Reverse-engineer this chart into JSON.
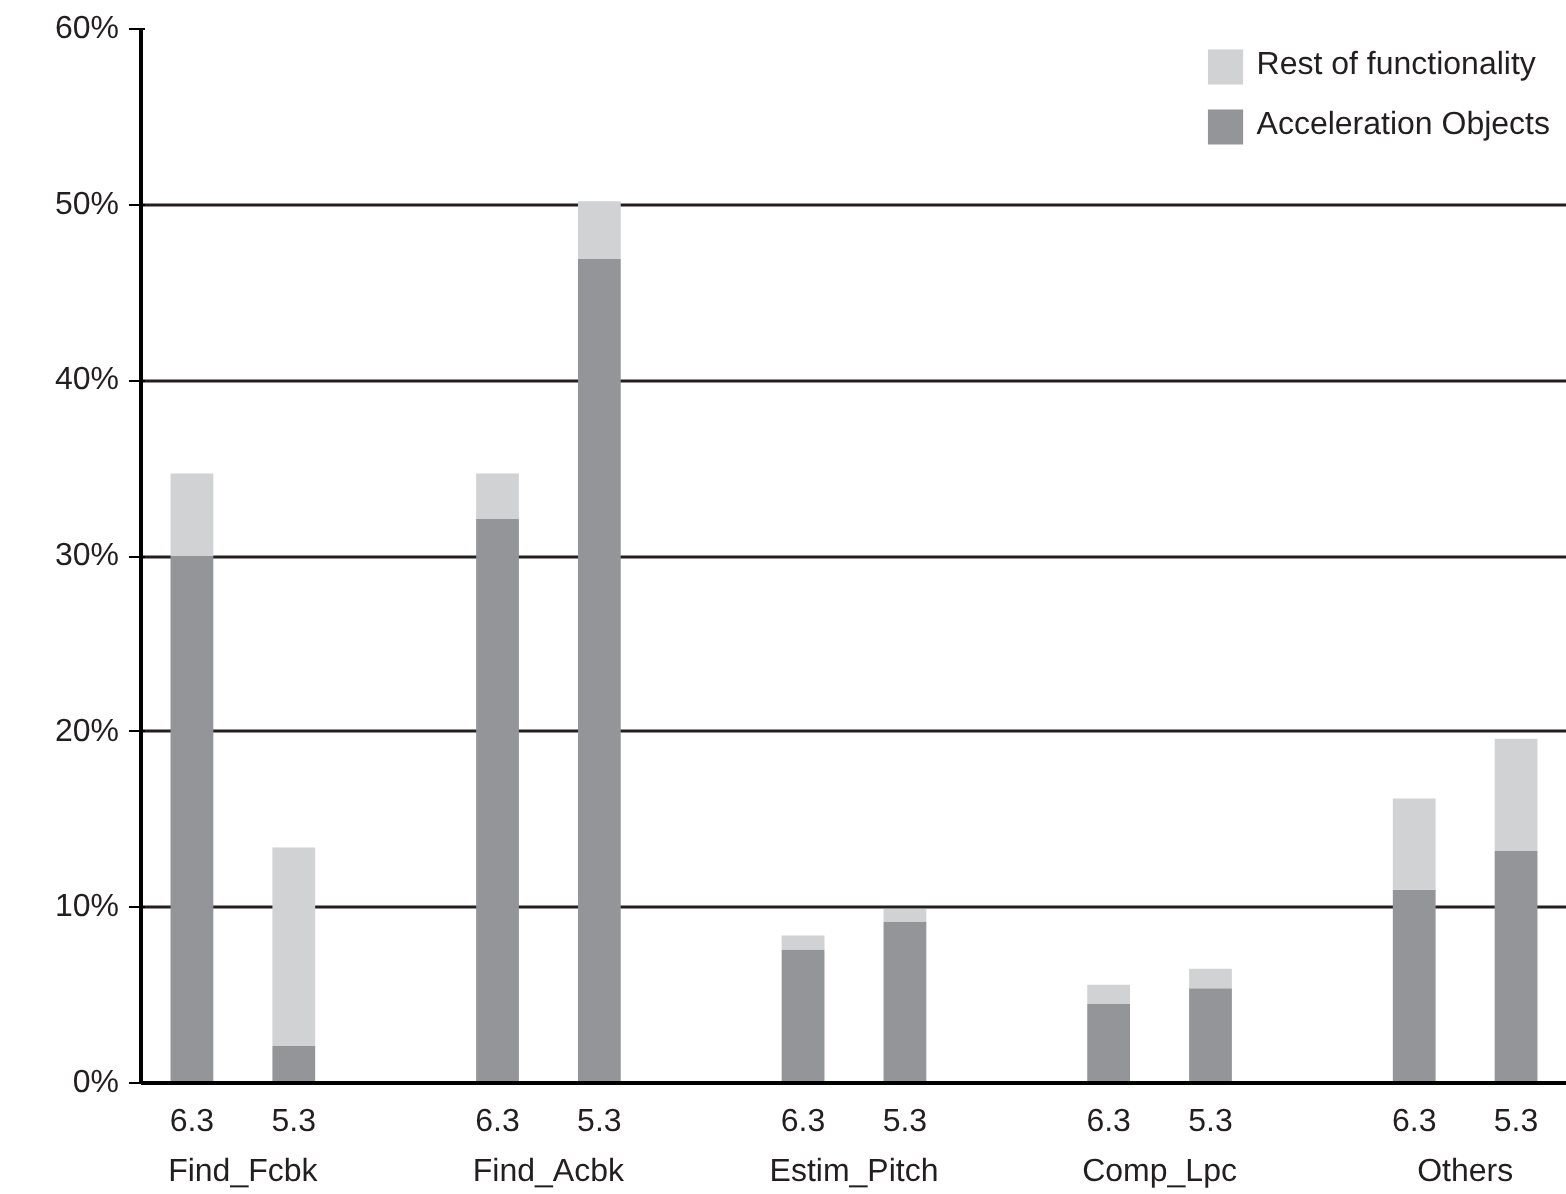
{
  "chart_data": {
    "type": "bar",
    "stacked": true,
    "categories": [
      "6.3",
      "5.3",
      "6.3",
      "5.3",
      "6.3",
      "5.3",
      "6.3",
      "5.3",
      "6.3",
      "5.3"
    ],
    "annotations": [
      "Find_Fcbk",
      "Find_Acbk",
      "Estim_Pitch",
      "Comp_Lpc",
      "Others"
    ],
    "series": [
      {
        "name": "Acceleration Objects",
        "color": "#939598",
        "values": [
          30.0,
          2.1,
          32.1,
          46.9,
          7.6,
          9.2,
          4.5,
          5.4,
          11.0,
          13.2
        ]
      },
      {
        "name": "Rest of functionality",
        "color": "#d1d2d4",
        "values": [
          4.7,
          11.3,
          2.6,
          3.3,
          0.8,
          0.7,
          1.1,
          1.1,
          5.2,
          6.4
        ]
      }
    ],
    "ylim": [
      0,
      60
    ],
    "yticks": [
      {
        "value": 0,
        "label": "0%"
      },
      {
        "value": 10,
        "label": "10%"
      },
      {
        "value": 20,
        "label": "20%"
      },
      {
        "value": 30,
        "label": "30%"
      },
      {
        "value": 40,
        "label": "40%"
      },
      {
        "value": 50,
        "label": "50%"
      },
      {
        "value": 60,
        "label": "60%"
      }
    ],
    "grid": "y",
    "legend": "top right"
  }
}
